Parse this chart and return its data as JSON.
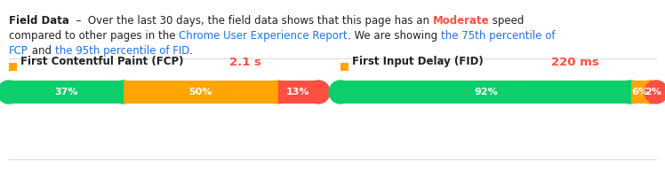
{
  "fcp_label": "First Contentful Paint (FCP)",
  "fcp_value": "2.1 s",
  "fcp_fast": 37,
  "fcp_moderate": 50,
  "fcp_slow": 13,
  "fid_label": "First Input Delay (FID)",
  "fid_value": "220 ms",
  "fid_fast": 92,
  "fid_moderate": 6,
  "fid_slow": 2,
  "color_fast": "#0CCE6B",
  "color_moderate": "#FFA400",
  "color_slow": "#FF4E42",
  "color_orange_icon": "#FFA400",
  "color_value": "#FF4E42",
  "color_blue_link": "#1A73E8",
  "color_highlight": "#FF4E42",
  "bg_color": "#ffffff",
  "divider_color": "#dadce0",
  "text_color": "#202124",
  "text_gray": "#5f6368"
}
